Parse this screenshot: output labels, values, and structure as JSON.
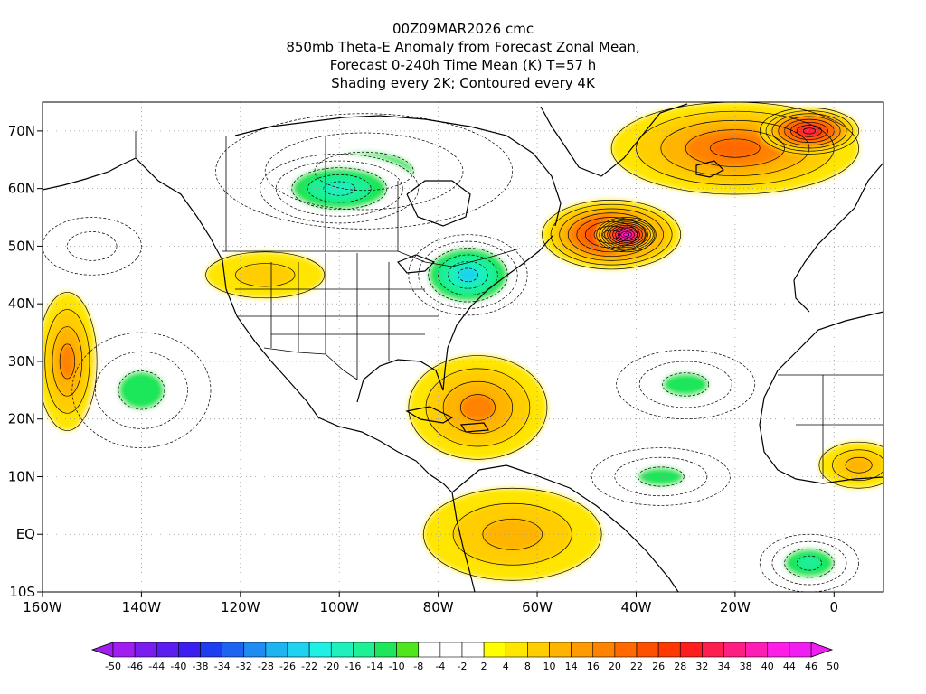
{
  "title": {
    "line1": "00Z09MAR2026 cmc",
    "line2": "850mb Theta-E Anomaly from Forecast Zonal Mean,",
    "line3": "Forecast 0-240h Time Mean (K) T=57 h",
    "line4": "Shading every 2K; Contoured every 4K"
  },
  "map": {
    "projection": "cylindrical",
    "lon_range": [
      -160,
      10
    ],
    "lat_range": [
      -10,
      75
    ],
    "x_ticks": [
      {
        "lon": -160,
        "label": "160W"
      },
      {
        "lon": -140,
        "label": "140W"
      },
      {
        "lon": -120,
        "label": "120W"
      },
      {
        "lon": -100,
        "label": "100W"
      },
      {
        "lon": -80,
        "label": "80W"
      },
      {
        "lon": -60,
        "label": "60W"
      },
      {
        "lon": -40,
        "label": "40W"
      },
      {
        "lon": -20,
        "label": "20W"
      },
      {
        "lon": 0,
        "label": "0"
      }
    ],
    "y_ticks": [
      {
        "lat": 70,
        "label": "70N"
      },
      {
        "lat": 60,
        "label": "60N"
      },
      {
        "lat": 50,
        "label": "50N"
      },
      {
        "lat": 40,
        "label": "40N"
      },
      {
        "lat": 30,
        "label": "30N"
      },
      {
        "lat": 20,
        "label": "20N"
      },
      {
        "lat": 10,
        "label": "10N"
      },
      {
        "lat": 0,
        "label": "EQ"
      },
      {
        "lat": -10,
        "label": "10S"
      }
    ],
    "anomaly_features": [
      {
        "lon": -95,
        "lat": 63,
        "rx": 30,
        "ry": 10,
        "value": -12
      },
      {
        "lon": -100,
        "lat": 60,
        "rx": 16,
        "ry": 6,
        "value": -18
      },
      {
        "lon": -74,
        "lat": 45,
        "rx": 12,
        "ry": 7,
        "value": -22
      },
      {
        "lon": -140,
        "lat": 25,
        "rx": 14,
        "ry": 10,
        "value": -10
      },
      {
        "lon": -35,
        "lat": 10,
        "rx": 14,
        "ry": 5,
        "value": -12
      },
      {
        "lon": -150,
        "lat": 50,
        "rx": 10,
        "ry": 5,
        "value": -8
      },
      {
        "lon": -30,
        "lat": 26,
        "rx": 14,
        "ry": 6,
        "value": -10
      },
      {
        "lon": -5,
        "lat": -5,
        "rx": 10,
        "ry": 5,
        "value": -14
      },
      {
        "lon": -45,
        "lat": 52,
        "rx": 14,
        "ry": 6,
        "value": 30
      },
      {
        "lon": -42,
        "lat": 52,
        "rx": 6,
        "ry": 3,
        "value": 44
      },
      {
        "lon": -20,
        "lat": 67,
        "rx": 25,
        "ry": 8,
        "value": 20
      },
      {
        "lon": -5,
        "lat": 70,
        "rx": 10,
        "ry": 4,
        "value": 30
      },
      {
        "lon": -155,
        "lat": 30,
        "rx": 6,
        "ry": 12,
        "value": 16
      },
      {
        "lon": -72,
        "lat": 22,
        "rx": 14,
        "ry": 9,
        "value": 14
      },
      {
        "lon": -65,
        "lat": 0,
        "rx": 18,
        "ry": 8,
        "value": 12
      },
      {
        "lon": -115,
        "lat": 45,
        "rx": 12,
        "ry": 4,
        "value": 8
      },
      {
        "lon": 5,
        "lat": 12,
        "rx": 8,
        "ry": 4,
        "value": 10
      }
    ]
  },
  "colorbar": {
    "labels": [
      "-50",
      "-46",
      "-44",
      "-40",
      "-38",
      "-34",
      "-32",
      "-28",
      "-26",
      "-22",
      "-20",
      "-16",
      "-14",
      "-10",
      "-8",
      "-4",
      "-2",
      "2",
      "4",
      "8",
      "10",
      "14",
      "16",
      "20",
      "22",
      "26",
      "28",
      "32",
      "34",
      "38",
      "40",
      "44",
      "46",
      "50"
    ],
    "colors": [
      "#a01ef0",
      "#7a1ef0",
      "#5a1ef0",
      "#3c1ef0",
      "#1e3cf0",
      "#1e64f0",
      "#1e8cf0",
      "#1eb4f0",
      "#1ed2f0",
      "#1ef0e6",
      "#1ef0be",
      "#1ef096",
      "#1ee65a",
      "#50e61e",
      "#ffffff",
      "#ffffff",
      "#ffffff",
      "#ffff00",
      "#ffe600",
      "#ffcd00",
      "#ffb400",
      "#ff9b00",
      "#ff8200",
      "#ff6900",
      "#ff5000",
      "#ff3700",
      "#ff1e1e",
      "#ff1e50",
      "#ff1e82",
      "#ff1eb4",
      "#ff1ee6",
      "#f01ef0"
    ]
  }
}
